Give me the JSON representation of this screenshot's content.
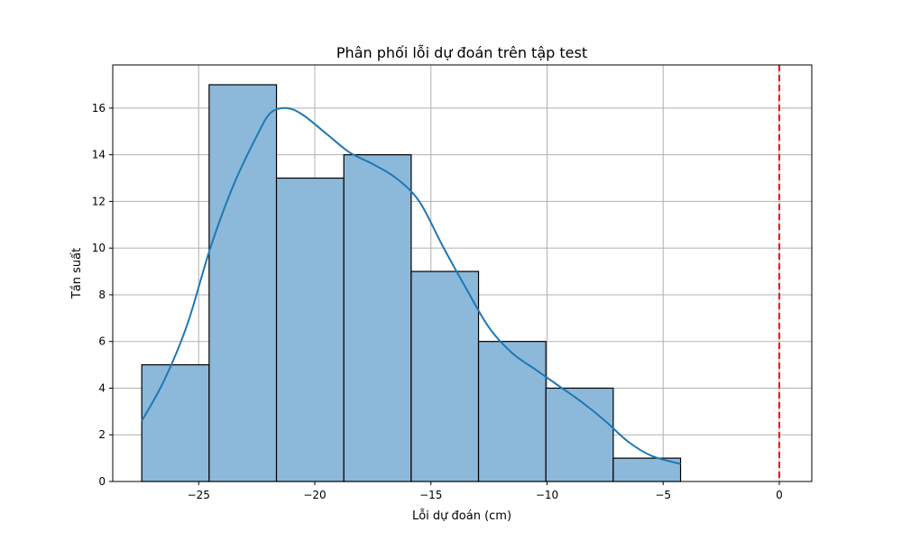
{
  "chart_data": {
    "type": "bar",
    "title": "Phân phối lỗi dự đoán trên tập test",
    "xlabel": "Lỗi dự đoán (cm)",
    "ylabel": "Tần suất",
    "xlim": [
      -28.7,
      1.4
    ],
    "ylim": [
      0,
      17.85
    ],
    "grid": true,
    "x_ticks": [
      -25,
      -20,
      -15,
      -10,
      -5,
      0
    ],
    "x_tick_labels": [
      "−25",
      "−20",
      "−15",
      "−10",
      "−5",
      "0"
    ],
    "y_ticks": [
      0,
      2,
      4,
      6,
      8,
      10,
      12,
      14,
      16
    ],
    "y_tick_labels": [
      "0",
      "2",
      "4",
      "6",
      "8",
      "10",
      "12",
      "14",
      "16"
    ],
    "histogram": {
      "bin_edges": [
        -27.45,
        -24.55,
        -21.65,
        -18.75,
        -15.85,
        -12.95,
        -10.05,
        -7.15,
        -4.25
      ],
      "counts": [
        5,
        17,
        13,
        14,
        9,
        6,
        4,
        1
      ],
      "fill_color": "#8cb9da",
      "edge_color": "#000000"
    },
    "kde": {
      "color": "#1f77b4",
      "x": [
        -27.45,
        -26.5,
        -25.5,
        -24.5,
        -23.5,
        -22.5,
        -21.9,
        -21.2,
        -20.5,
        -19.5,
        -18.5,
        -17.5,
        -16.5,
        -15.5,
        -14.5,
        -13.5,
        -12.5,
        -11.5,
        -10.5,
        -9.5,
        -8.5,
        -7.5,
        -6.5,
        -5.5,
        -4.25
      ],
      "y": [
        2.6,
        4.3,
        6.7,
        10.0,
        12.7,
        14.8,
        15.8,
        16.0,
        15.7,
        14.9,
        14.1,
        13.6,
        13.0,
        12.0,
        10.1,
        8.3,
        6.6,
        5.5,
        4.8,
        4.1,
        3.4,
        2.6,
        1.7,
        1.1,
        0.75
      ]
    },
    "reference_line": {
      "x": 0,
      "color": "#ff0000",
      "style": "dashed"
    }
  }
}
